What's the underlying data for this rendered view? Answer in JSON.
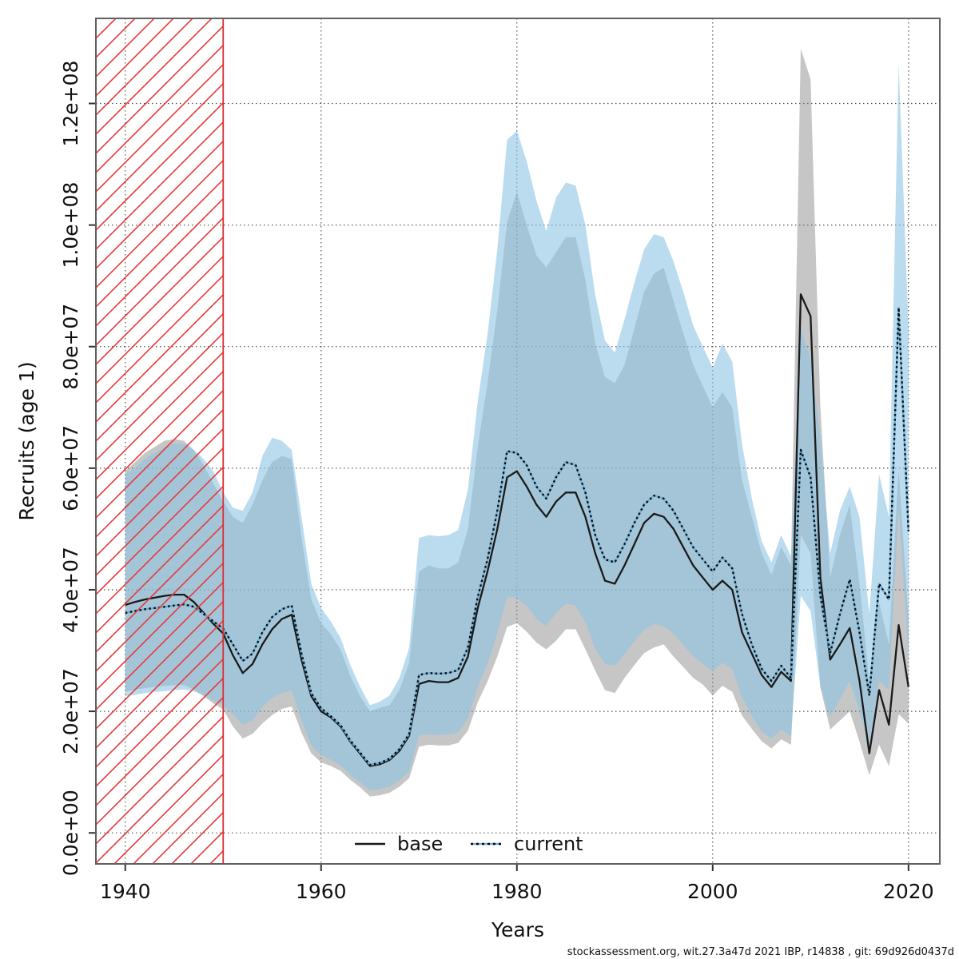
{
  "chart": {
    "xlabel": "Years",
    "ylabel": "Recruits (age 1)",
    "footer": "stockassessment.org, wit.27.3a47d  2021  IBP, r14838 , git: 69d926d0437d",
    "legend": {
      "base_label": "base",
      "current_label": "current"
    }
  },
  "chart_data": {
    "type": "line",
    "title": "",
    "xlabel": "Years",
    "ylabel": "Recruits (age 1)",
    "grid": true,
    "legend_position": "bottom-center-inside",
    "x_ticks": [
      1940,
      1960,
      1980,
      2000,
      2020
    ],
    "y_tick_labels": [
      "0.0e+00",
      "2.0e+07",
      "4.0e+07",
      "6.0e+07",
      "8.0e+07",
      "1.0e+08",
      "1.2e+08"
    ],
    "y_tick_values": [
      0,
      20000000.0,
      40000000.0,
      60000000.0,
      80000000.0,
      100000000.0,
      120000000.0
    ],
    "xlim": [
      1937.0,
      2023.2
    ],
    "ylim": [
      -5100000.0,
      134000000.0
    ],
    "excluded_region": {
      "x_start": 1937.0,
      "x_end": 1950.0,
      "style": "red-diagonal-hatch"
    },
    "colors": {
      "base_line": "#1a1a1a",
      "base_band": "rgba(128,128,128,0.45)",
      "current_line_underlay": "#6fb0d8",
      "current_line_dots": "#0a0a0a",
      "current_band": "rgba(141,197,229,0.60)",
      "hatch_red": "#e63939",
      "grid": "#555555",
      "box": "#606060"
    },
    "years": [
      1940,
      1941,
      1942,
      1943,
      1944,
      1945,
      1946,
      1947,
      1948,
      1949,
      1950,
      1951,
      1952,
      1953,
      1954,
      1955,
      1956,
      1957,
      1958,
      1959,
      1960,
      1961,
      1962,
      1963,
      1964,
      1965,
      1966,
      1967,
      1968,
      1969,
      1970,
      1971,
      1972,
      1973,
      1974,
      1975,
      1976,
      1977,
      1978,
      1979,
      1980,
      1981,
      1982,
      1983,
      1984,
      1985,
      1986,
      1987,
      1988,
      1989,
      1990,
      1991,
      1992,
      1993,
      1994,
      1995,
      1996,
      1997,
      1998,
      1999,
      2000,
      2001,
      2002,
      2003,
      2004,
      2005,
      2006,
      2007,
      2008,
      2009,
      2010,
      2011,
      2012,
      2013,
      2014,
      2015,
      2016,
      2017,
      2018,
      2019,
      2020
    ],
    "series": [
      {
        "name": "base",
        "line_style": "solid",
        "values": [
          37500000.0,
          38000000.0,
          38400000.0,
          38700000.0,
          39000000.0,
          39200000.0,
          39200000.0,
          38000000.0,
          36200000.0,
          34400000.0,
          32800000.0,
          29200000.0,
          26300000.0,
          27800000.0,
          31000000.0,
          33500000.0,
          35200000.0,
          35900000.0,
          28500000.0,
          22500000.0,
          20000000.0,
          19000000.0,
          17500000.0,
          15000000.0,
          13000000.0,
          11000000.0,
          11300000.0,
          12000000.0,
          13500000.0,
          16000000.0,
          24500000.0,
          25000000.0,
          24800000.0,
          24800000.0,
          25500000.0,
          29000000.0,
          37000000.0,
          43000000.0,
          50000000.0,
          58500000.0,
          59500000.0,
          57000000.0,
          54000000.0,
          52000000.0,
          54500000.0,
          56000000.0,
          56000000.0,
          52000000.0,
          46000000.0,
          41500000.0,
          41000000.0,
          44000000.0,
          47500000.0,
          51000000.0,
          52500000.0,
          52000000.0,
          50000000.0,
          47000000.0,
          44000000.0,
          42000000.0,
          40000000.0,
          41500000.0,
          40000000.0,
          33000000.0,
          29500000.0,
          26000000.0,
          24000000.0,
          26500000.0,
          25000000.0,
          88600000.0,
          85000000.0,
          42000000.0,
          28500000.0,
          31000000.0,
          33700000.0,
          25000000.0,
          13100000.0,
          23500000.0,
          17800000.0,
          34200000.0,
          24000000.0
        ],
        "lower": [
          23200000.0,
          23600000.0,
          23800000.0,
          24000000.0,
          24200000.0,
          24300000.0,
          24300000.0,
          23600000.0,
          22500000.0,
          21300000.0,
          20300000.0,
          17500000.0,
          15500000.0,
          16300000.0,
          18000000.0,
          19400000.0,
          20400000.0,
          20800000.0,
          16500000.0,
          13100000.0,
          11600000.0,
          11000000.0,
          10200000.0,
          8700000.0,
          7500000.0,
          6000000.0,
          6200000.0,
          6600000.0,
          7600000.0,
          9000000.0,
          14200000.0,
          14500000.0,
          14400000.0,
          14400000.0,
          14800000.0,
          16800000.0,
          21500000.0,
          24900000.0,
          29000000.0,
          33900000.0,
          34500000.0,
          33100000.0,
          31300000.0,
          30200000.0,
          31600000.0,
          33500000.0,
          33500000.0,
          30200000.0,
          26700000.0,
          23500000.0,
          23000000.0,
          25500000.0,
          27600000.0,
          29600000.0,
          30500000.0,
          31000000.0,
          29000000.0,
          27300000.0,
          25500000.0,
          24400000.0,
          22600000.0,
          24200000.0,
          23200000.0,
          19300000.0,
          17100000.0,
          15100000.0,
          13900000.0,
          15400000.0,
          14500000.0,
          49000000.0,
          46000000.0,
          24000000.0,
          17000000.0,
          18500000.0,
          20000000.0,
          15000000.0,
          9500000.0,
          14500000.0,
          11000000.0,
          19500000.0,
          18000000.0
        ],
        "upper": [
          59500000.0,
          61000000.0,
          62500000.0,
          63500000.0,
          64500000.0,
          64800000.0,
          64500000.0,
          63000000.0,
          60500000.0,
          57500000.0,
          54500000.0,
          52000000.0,
          51000000.0,
          54000000.0,
          58000000.0,
          61000000.0,
          62000000.0,
          61500000.0,
          48500000.0,
          38500000.0,
          34500000.0,
          32700000.0,
          30100000.0,
          25800000.0,
          22400000.0,
          20000000.0,
          20600000.0,
          21000000.0,
          23500000.0,
          28000000.0,
          43000000.0,
          44000000.0,
          43500000.0,
          43500000.0,
          44500000.0,
          50000000.0,
          63500000.0,
          74000000.0,
          86000000.0,
          100500000.0,
          105500000.0,
          100000000.0,
          95000000.0,
          93000000.0,
          95500000.0,
          98000000.0,
          98000000.0,
          91000000.0,
          80500000.0,
          75000000.0,
          74000000.0,
          77000000.0,
          83000000.0,
          89000000.0,
          92000000.0,
          93000000.0,
          87500000.0,
          82200000.0,
          77000000.0,
          73500000.0,
          70000000.0,
          72500000.0,
          70000000.0,
          58000000.0,
          52000000.0,
          46000000.0,
          42500000.0,
          47000000.0,
          44000000.0,
          129000000.0,
          124000000.0,
          70000000.0,
          42000000.0,
          49000000.0,
          54000000.0,
          41000000.0,
          25000000.0,
          38000000.0,
          31000000.0,
          60000000.0,
          35000000.0
        ]
      },
      {
        "name": "current",
        "line_style": "dotted",
        "values": [
          36200000.0,
          36500000.0,
          36800000.0,
          37000000.0,
          37200000.0,
          37400000.0,
          37600000.0,
          37200000.0,
          36000000.0,
          34800000.0,
          33600000.0,
          31000000.0,
          28300000.0,
          29500000.0,
          33000000.0,
          35500000.0,
          36800000.0,
          37400000.0,
          29500000.0,
          23000000.0,
          20500000.0,
          19200000.0,
          17700000.0,
          15200000.0,
          13200000.0,
          11200000.0,
          11500000.0,
          12200000.0,
          13800000.0,
          16300000.0,
          26000000.0,
          26300000.0,
          26200000.0,
          26300000.0,
          26800000.0,
          30500000.0,
          38800000.0,
          45000000.0,
          53000000.0,
          62800000.0,
          62500000.0,
          60500000.0,
          57000000.0,
          55000000.0,
          58500000.0,
          61000000.0,
          60500000.0,
          56000000.0,
          49000000.0,
          45000000.0,
          44500000.0,
          47500000.0,
          51000000.0,
          54000000.0,
          55500000.0,
          55000000.0,
          53000000.0,
          50000000.0,
          47000000.0,
          45000000.0,
          43000000.0,
          45300000.0,
          43500000.0,
          36000000.0,
          31000000.0,
          27000000.0,
          25000000.0,
          27500000.0,
          25500000.0,
          63000000.0,
          58500000.0,
          39000000.0,
          29600000.0,
          36000000.0,
          41700000.0,
          33000000.0,
          22600000.0,
          41000000.0,
          38400000.0,
          86400000.0,
          49600000.0
        ],
        "lower": [
          22500000.0,
          22700000.0,
          23000000.0,
          23200000.0,
          23300000.0,
          23500000.0,
          23600000.0,
          23300000.0,
          22600000.0,
          21800000.0,
          21000000.0,
          19500000.0,
          17800000.0,
          18500000.0,
          20700000.0,
          22200000.0,
          23000000.0,
          23400000.0,
          18500000.0,
          14400000.0,
          12800000.0,
          12000000.0,
          11100000.0,
          9500000.0,
          8300000.0,
          7000000.0,
          7200000.0,
          7600000.0,
          8600000.0,
          10100000.0,
          16000000.0,
          16200000.0,
          16100000.0,
          16200000.0,
          16500000.0,
          18800000.0,
          24000000.0,
          27800000.0,
          32800000.0,
          38800000.0,
          38600000.0,
          37400000.0,
          35200000.0,
          34000000.0,
          36200000.0,
          37700000.0,
          37400000.0,
          34600000.0,
          30300000.0,
          27800000.0,
          27500000.0,
          29400000.0,
          31500000.0,
          33400000.0,
          34300000.0,
          34000000.0,
          32800000.0,
          30900000.0,
          29100000.0,
          27800000.0,
          26600000.0,
          28000000.0,
          26900000.0,
          22300000.0,
          19200000.0,
          16700000.0,
          15500000.0,
          17000000.0,
          15800000.0,
          39000000.0,
          36500000.0,
          24000000.0,
          19000000.0,
          22000000.0,
          25000000.0,
          20000000.0,
          14500000.0,
          25000000.0,
          23500000.0,
          53500000.0,
          29000000.0
        ],
        "upper": [
          59000000.0,
          60000000.0,
          61500000.0,
          62500000.0,
          63500000.0,
          64000000.0,
          64000000.0,
          63000000.0,
          61500000.0,
          59500000.0,
          56000000.0,
          53500000.0,
          53000000.0,
          56000000.0,
          62000000.0,
          65000000.0,
          64500000.0,
          63000000.0,
          52000000.0,
          41000000.0,
          37000000.0,
          34800000.0,
          32000000.0,
          27600000.0,
          24000000.0,
          21000000.0,
          21600000.0,
          22600000.0,
          25500000.0,
          30500000.0,
          48500000.0,
          49000000.0,
          48800000.0,
          49000000.0,
          49800000.0,
          56500000.0,
          71000000.0,
          82000000.0,
          96000000.0,
          114000000.0,
          115500000.0,
          110500000.0,
          104000000.0,
          99000000.0,
          104500000.0,
          107000000.0,
          106500000.0,
          100000000.0,
          88500000.0,
          81000000.0,
          79000000.0,
          84500000.0,
          90500000.0,
          96000000.0,
          98500000.0,
          98000000.0,
          94000000.0,
          89000000.0,
          83500000.0,
          80000000.0,
          76500000.0,
          80500000.0,
          77500000.0,
          64000000.0,
          55000000.0,
          48000000.0,
          44500000.0,
          49000000.0,
          45500000.0,
          83000000.0,
          78000000.0,
          65000000.0,
          46000000.0,
          53000000.0,
          57000000.0,
          52000000.0,
          36000000.0,
          59000000.0,
          52000000.0,
          126500000.0,
          83000000.0
        ]
      }
    ]
  }
}
